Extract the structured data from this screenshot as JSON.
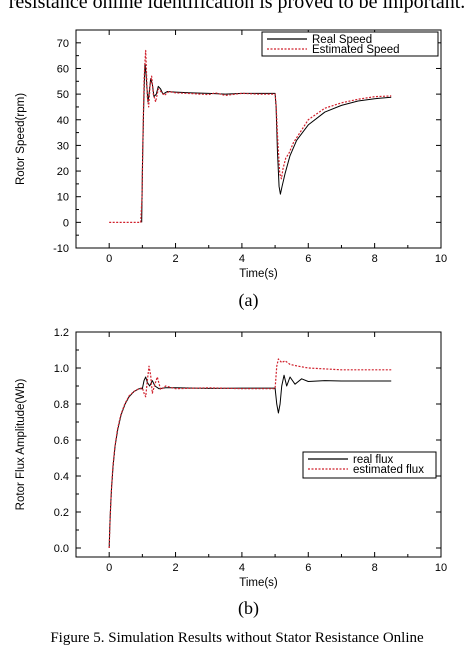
{
  "header_text": "resistance online identification is proved to be important.",
  "footer_text": "Figure 5.    Simulation Results without Stator Resistance Online",
  "chart_data": [
    {
      "type": "line",
      "panel_label": "(a)",
      "xlabel": "Time(s)",
      "ylabel": "Rotor Speed(rpm)",
      "xlim": [
        -1,
        10
      ],
      "ylim": [
        -10,
        75
      ],
      "xticks": [
        0,
        2,
        4,
        6,
        8,
        10
      ],
      "yticks": [
        -10,
        0,
        10,
        20,
        30,
        40,
        50,
        60,
        70
      ],
      "grid": false,
      "legend_position": "top-right",
      "series": [
        {
          "name": "Real Speed",
          "color": "#000000",
          "style": "solid",
          "points": [
            [
              0.98,
              0
            ],
            [
              1.0,
              20
            ],
            [
              1.03,
              40
            ],
            [
              1.06,
              55
            ],
            [
              1.08,
              62
            ],
            [
              1.11,
              58
            ],
            [
              1.14,
              52
            ],
            [
              1.17,
              47
            ],
            [
              1.21,
              51
            ],
            [
              1.25,
              56
            ],
            [
              1.3,
              54
            ],
            [
              1.35,
              49
            ],
            [
              1.42,
              50
            ],
            [
              1.48,
              53
            ],
            [
              1.55,
              52
            ],
            [
              1.62,
              50
            ],
            [
              1.75,
              51
            ],
            [
              2.0,
              50.8
            ],
            [
              2.5,
              50.5
            ],
            [
              3.0,
              50.3
            ],
            [
              3.5,
              50
            ],
            [
              4.0,
              50.3
            ],
            [
              4.5,
              50.3
            ],
            [
              5.0,
              50.3
            ],
            [
              5.03,
              45
            ],
            [
              5.07,
              28
            ],
            [
              5.12,
              14
            ],
            [
              5.16,
              11
            ],
            [
              5.21,
              14
            ],
            [
              5.3,
              19
            ],
            [
              5.45,
              26
            ],
            [
              5.65,
              32
            ],
            [
              6.0,
              38
            ],
            [
              6.5,
              43
            ],
            [
              7.0,
              45.6
            ],
            [
              7.5,
              47.3
            ],
            [
              8.0,
              48.2
            ],
            [
              8.5,
              48.8
            ]
          ]
        },
        {
          "name": "Estimated Speed",
          "color": "#d0202c",
          "style": "dotted",
          "points": [
            [
              0.0,
              0
            ],
            [
              0.95,
              0
            ],
            [
              0.99,
              10
            ],
            [
              1.02,
              35
            ],
            [
              1.05,
              55
            ],
            [
              1.08,
              63
            ],
            [
              1.1,
              67
            ],
            [
              1.12,
              60
            ],
            [
              1.15,
              49
            ],
            [
              1.19,
              45
            ],
            [
              1.23,
              53
            ],
            [
              1.28,
              57
            ],
            [
              1.33,
              50
            ],
            [
              1.4,
              47
            ],
            [
              1.48,
              52
            ],
            [
              1.56,
              51
            ],
            [
              1.66,
              49.5
            ],
            [
              1.8,
              51
            ],
            [
              2.0,
              50.5
            ],
            [
              2.5,
              50.2
            ],
            [
              3.0,
              49.8
            ],
            [
              3.2,
              50.5
            ],
            [
              3.5,
              49.5
            ],
            [
              4.0,
              50.3
            ],
            [
              4.5,
              50
            ],
            [
              5.0,
              50
            ],
            [
              5.03,
              46
            ],
            [
              5.08,
              32
            ],
            [
              5.14,
              19
            ],
            [
              5.19,
              17
            ],
            [
              5.24,
              21
            ],
            [
              5.32,
              25
            ],
            [
              5.42,
              27
            ],
            [
              5.55,
              31
            ],
            [
              5.75,
              35
            ],
            [
              6.0,
              40
            ],
            [
              6.5,
              44.5
            ],
            [
              7.0,
              46.6
            ],
            [
              7.5,
              48
            ],
            [
              8.0,
              49
            ],
            [
              8.5,
              49.3
            ]
          ]
        }
      ]
    },
    {
      "type": "line",
      "panel_label": "(b)",
      "xlabel": "Time(s)",
      "ylabel": "Rotor Flux Amplitude(Wb)",
      "xlim": [
        -1,
        10
      ],
      "ylim": [
        -0.05,
        1.2
      ],
      "xticks": [
        0,
        2,
        4,
        6,
        8,
        10
      ],
      "yticks": [
        0.0,
        0.2,
        0.4,
        0.6,
        0.8,
        1.0,
        1.2
      ],
      "grid": false,
      "legend_position": "center-right",
      "series": [
        {
          "name": "real flux",
          "color": "#000000",
          "style": "solid",
          "points": [
            [
              0.0,
              0.0
            ],
            [
              0.03,
              0.18
            ],
            [
              0.07,
              0.33
            ],
            [
              0.12,
              0.46
            ],
            [
              0.18,
              0.57
            ],
            [
              0.26,
              0.66
            ],
            [
              0.36,
              0.74
            ],
            [
              0.48,
              0.8
            ],
            [
              0.6,
              0.84
            ],
            [
              0.75,
              0.87
            ],
            [
              0.9,
              0.885
            ],
            [
              1.0,
              0.885
            ],
            [
              1.05,
              0.93
            ],
            [
              1.1,
              0.95
            ],
            [
              1.15,
              0.92
            ],
            [
              1.22,
              0.9
            ],
            [
              1.3,
              0.93
            ],
            [
              1.38,
              0.9
            ],
            [
              1.5,
              0.885
            ],
            [
              1.7,
              0.89
            ],
            [
              2.0,
              0.89
            ],
            [
              3.0,
              0.887
            ],
            [
              4.0,
              0.888
            ],
            [
              5.0,
              0.888
            ],
            [
              5.05,
              0.8
            ],
            [
              5.1,
              0.75
            ],
            [
              5.15,
              0.8
            ],
            [
              5.2,
              0.9
            ],
            [
              5.27,
              0.96
            ],
            [
              5.35,
              0.9
            ],
            [
              5.45,
              0.95
            ],
            [
              5.6,
              0.91
            ],
            [
              5.8,
              0.94
            ],
            [
              6.0,
              0.925
            ],
            [
              6.5,
              0.93
            ],
            [
              7.0,
              0.928
            ],
            [
              8.0,
              0.928
            ],
            [
              8.5,
              0.928
            ]
          ]
        },
        {
          "name": "estimated flux",
          "color": "#d0202c",
          "style": "dotted",
          "points": [
            [
              0.0,
              0.0
            ],
            [
              0.02,
              0.12
            ],
            [
              0.06,
              0.3
            ],
            [
              0.11,
              0.45
            ],
            [
              0.17,
              0.56
            ],
            [
              0.25,
              0.66
            ],
            [
              0.35,
              0.74
            ],
            [
              0.47,
              0.8
            ],
            [
              0.6,
              0.845
            ],
            [
              0.75,
              0.87
            ],
            [
              0.9,
              0.885
            ],
            [
              1.0,
              0.89
            ],
            [
              1.05,
              0.86
            ],
            [
              1.1,
              0.84
            ],
            [
              1.15,
              0.93
            ],
            [
              1.2,
              1.01
            ],
            [
              1.25,
              0.96
            ],
            [
              1.3,
              0.86
            ],
            [
              1.38,
              0.91
            ],
            [
              1.45,
              0.95
            ],
            [
              1.55,
              0.88
            ],
            [
              1.7,
              0.9
            ],
            [
              2.0,
              0.885
            ],
            [
              3.0,
              0.89
            ],
            [
              4.0,
              0.885
            ],
            [
              5.0,
              0.885
            ],
            [
              5.05,
              1.01
            ],
            [
              5.1,
              1.05
            ],
            [
              5.2,
              1.03
            ],
            [
              5.3,
              1.04
            ],
            [
              5.45,
              1.02
            ],
            [
              5.7,
              1.01
            ],
            [
              6.0,
              1.0
            ],
            [
              7.0,
              0.99
            ],
            [
              8.0,
              0.99
            ],
            [
              8.5,
              0.99
            ]
          ]
        }
      ]
    }
  ]
}
